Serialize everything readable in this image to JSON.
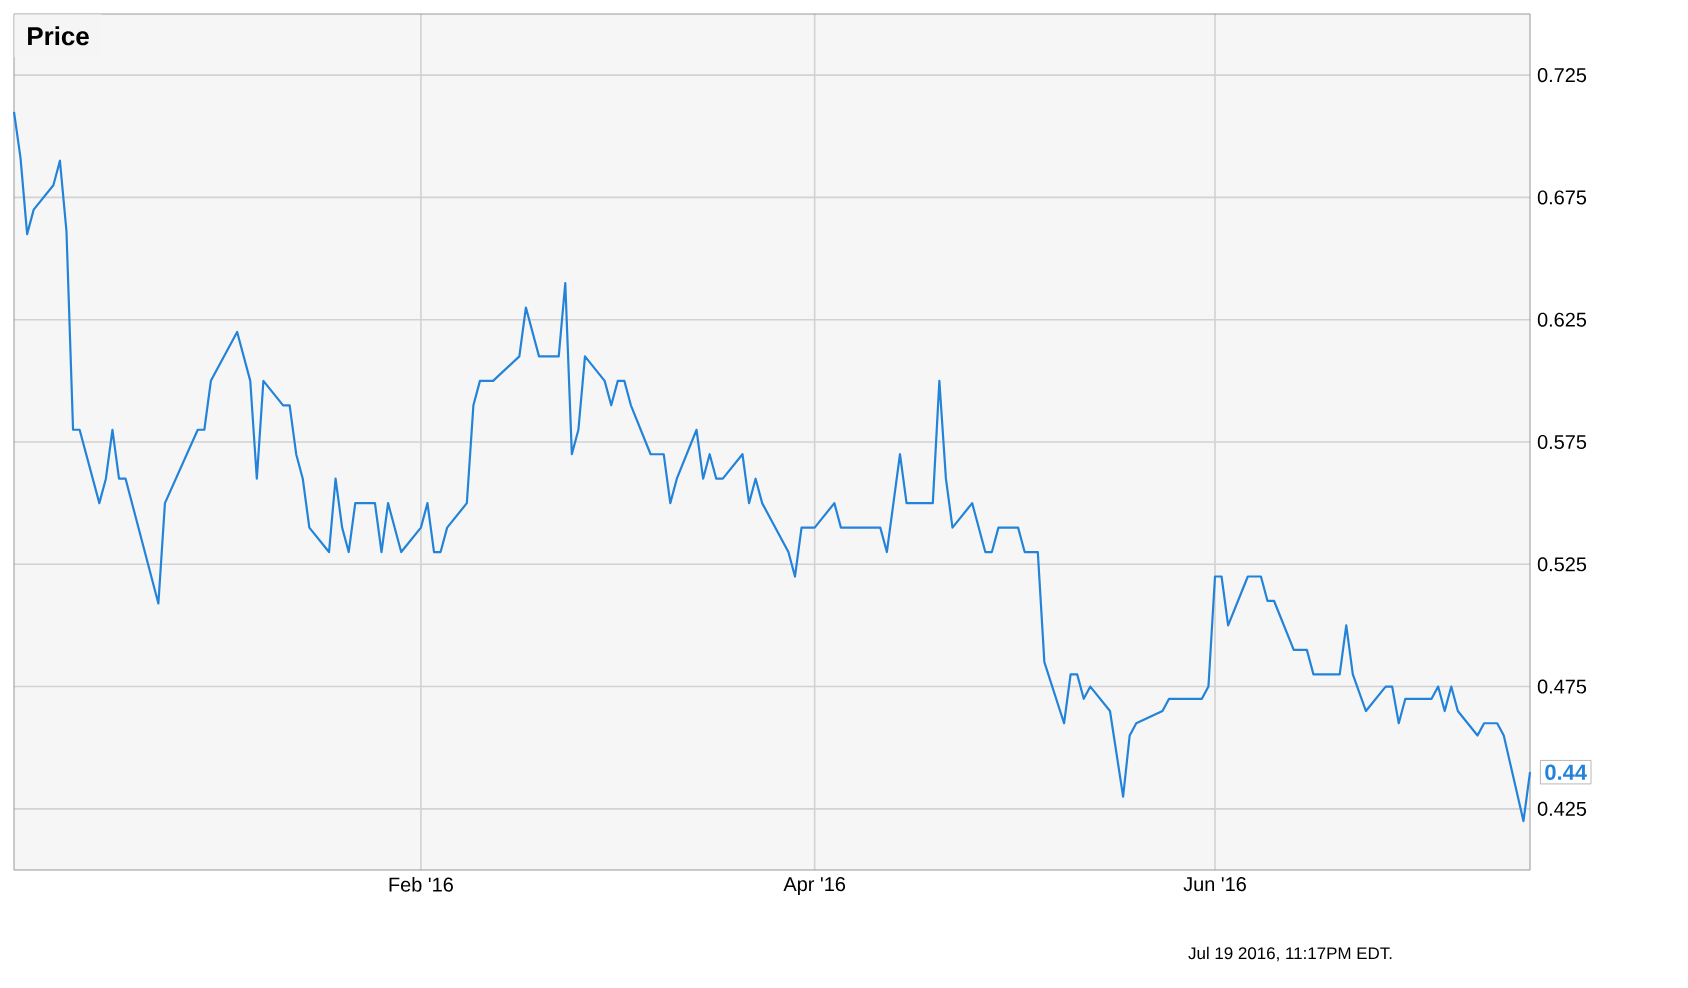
{
  "chart_data": {
    "type": "line",
    "title": "Price",
    "x": [
      "2015-12-01",
      "2015-12-02",
      "2015-12-03",
      "2015-12-04",
      "2015-12-07",
      "2015-12-08",
      "2015-12-09",
      "2015-12-10",
      "2015-12-11",
      "2015-12-14",
      "2015-12-15",
      "2015-12-16",
      "2015-12-17",
      "2015-12-18",
      "2015-12-23",
      "2015-12-24",
      "2015-12-29",
      "2015-12-30",
      "2015-12-31",
      "2016-01-04",
      "2016-01-06",
      "2016-01-07",
      "2016-01-08",
      "2016-01-11",
      "2016-01-12",
      "2016-01-13",
      "2016-01-14",
      "2016-01-15",
      "2016-01-18",
      "2016-01-19",
      "2016-01-20",
      "2016-01-21",
      "2016-01-22",
      "2016-01-25",
      "2016-01-26",
      "2016-01-27",
      "2016-01-29",
      "2016-02-01",
      "2016-02-02",
      "2016-02-03",
      "2016-02-04",
      "2016-02-05",
      "2016-02-08",
      "2016-02-09",
      "2016-02-10",
      "2016-02-12",
      "2016-02-16",
      "2016-02-17",
      "2016-02-19",
      "2016-02-22",
      "2016-02-23",
      "2016-02-24",
      "2016-02-25",
      "2016-02-26",
      "2016-02-29",
      "2016-03-01",
      "2016-03-02",
      "2016-03-03",
      "2016-03-04",
      "2016-03-07",
      "2016-03-09",
      "2016-03-10",
      "2016-03-11",
      "2016-03-14",
      "2016-03-15",
      "2016-03-16",
      "2016-03-17",
      "2016-03-18",
      "2016-03-21",
      "2016-03-22",
      "2016-03-23",
      "2016-03-24",
      "2016-03-28",
      "2016-03-29",
      "2016-03-30",
      "2016-04-01",
      "2016-04-04",
      "2016-04-05",
      "2016-04-11",
      "2016-04-12",
      "2016-04-14",
      "2016-04-15",
      "2016-04-19",
      "2016-04-20",
      "2016-04-21",
      "2016-04-22",
      "2016-04-25",
      "2016-04-27",
      "2016-04-28",
      "2016-04-29",
      "2016-05-02",
      "2016-05-03",
      "2016-05-05",
      "2016-05-06",
      "2016-05-09",
      "2016-05-10",
      "2016-05-11",
      "2016-05-12",
      "2016-05-13",
      "2016-05-16",
      "2016-05-18",
      "2016-05-19",
      "2016-05-20",
      "2016-05-24",
      "2016-05-25",
      "2016-05-30",
      "2016-05-31",
      "2016-06-01",
      "2016-06-02",
      "2016-06-03",
      "2016-06-06",
      "2016-06-08",
      "2016-06-09",
      "2016-06-10",
      "2016-06-13",
      "2016-06-15",
      "2016-06-16",
      "2016-06-20",
      "2016-06-21",
      "2016-06-22",
      "2016-06-24",
      "2016-06-27",
      "2016-06-28",
      "2016-06-29",
      "2016-06-30",
      "2016-07-04",
      "2016-07-05",
      "2016-07-06",
      "2016-07-07",
      "2016-07-08",
      "2016-07-11",
      "2016-07-12",
      "2016-07-14",
      "2016-07-15",
      "2016-07-18",
      "2016-07-19"
    ],
    "series": [
      {
        "color": "#2383d8",
        "values": [
          0.71,
          0.691,
          0.66,
          0.67,
          0.68,
          0.69,
          0.661,
          0.58,
          0.58,
          0.55,
          0.56,
          0.58,
          0.56,
          0.56,
          0.509,
          0.55,
          0.58,
          0.58,
          0.6,
          0.62,
          0.6,
          0.56,
          0.6,
          0.59,
          0.59,
          0.57,
          0.56,
          0.54,
          0.53,
          0.56,
          0.54,
          0.53,
          0.55,
          0.55,
          0.53,
          0.55,
          0.53,
          0.54,
          0.55,
          0.53,
          0.53,
          0.54,
          0.55,
          0.59,
          0.6,
          0.6,
          0.61,
          0.63,
          0.61,
          0.61,
          0.64,
          0.57,
          0.58,
          0.61,
          0.6,
          0.59,
          0.6,
          0.6,
          0.59,
          0.57,
          0.57,
          0.55,
          0.56,
          0.58,
          0.56,
          0.57,
          0.56,
          0.56,
          0.57,
          0.55,
          0.56,
          0.55,
          0.53,
          0.52,
          0.54,
          0.54,
          0.55,
          0.54,
          0.54,
          0.53,
          0.57,
          0.55,
          0.55,
          0.6,
          0.56,
          0.54,
          0.55,
          0.53,
          0.53,
          0.54,
          0.54,
          0.53,
          0.53,
          0.485,
          0.46,
          0.48,
          0.48,
          0.47,
          0.475,
          0.465,
          0.43,
          0.455,
          0.46,
          0.465,
          0.47,
          0.47,
          0.475,
          0.52,
          0.52,
          0.5,
          0.52,
          0.52,
          0.51,
          0.51,
          0.49,
          0.49,
          0.48,
          0.48,
          0.5,
          0.48,
          0.465,
          0.475,
          0.475,
          0.46,
          0.47,
          0.47,
          0.475,
          0.465,
          0.475,
          0.465,
          0.455,
          0.46,
          0.46,
          0.455,
          0.42,
          0.44
        ]
      }
    ],
    "xlim": [
      "2015-12-01",
      "2016-07-19"
    ],
    "xticks": [
      {
        "value": "2016-02-01",
        "label": "Feb '16"
      },
      {
        "value": "2016-04-01",
        "label": "Apr '16"
      },
      {
        "value": "2016-06-01",
        "label": "Jun '16"
      }
    ],
    "ylim": [
      0.4,
      0.75
    ],
    "yticks": [
      0.425,
      0.475,
      0.525,
      0.575,
      0.625,
      0.675,
      0.725
    ],
    "grid": true,
    "annotations": [
      {
        "text": "0.44",
        "x": "2016-07-19",
        "y": 0.44
      },
      "Jul 19 2016, 11:17PM EDT."
    ]
  }
}
